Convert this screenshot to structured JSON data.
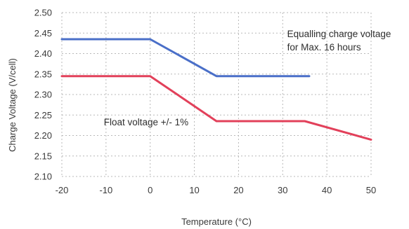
{
  "chart_data": {
    "type": "line",
    "title": "",
    "xlabel": "Temperature (°C)",
    "ylabel": "Charge Voltage (V/cell)",
    "xlim": [
      -20,
      50
    ],
    "ylim": [
      2.1,
      2.5
    ],
    "x_ticks": [
      "-20",
      "-10",
      "0",
      "10",
      "20",
      "30",
      "40",
      "50"
    ],
    "y_ticks": [
      "2.10",
      "2.15",
      "2.20",
      "2.25",
      "2.30",
      "2.35",
      "2.40",
      "2.45",
      "2.50"
    ],
    "grid": true,
    "series": [
      {
        "name": "Equalling charge voltage for Max. 16 hours",
        "color": "#4a6fc8",
        "points": [
          [
            -20,
            2.435
          ],
          [
            0,
            2.435
          ],
          [
            15,
            2.345
          ],
          [
            36,
            2.345
          ]
        ]
      },
      {
        "name": "Float voltage +/- 1%",
        "color": "#e2405a",
        "points": [
          [
            -20,
            2.345
          ],
          [
            0,
            2.345
          ],
          [
            15,
            2.235
          ],
          [
            35,
            2.235
          ],
          [
            50,
            2.19
          ]
        ]
      }
    ],
    "annotations": [
      {
        "lines": [
          "Equalling charge voltage",
          "for Max. 16 hours"
        ],
        "x": 31,
        "y": 2.44
      },
      {
        "lines": [
          "Float voltage +/- 1%"
        ],
        "x": -10.5,
        "y": 2.225
      }
    ]
  }
}
